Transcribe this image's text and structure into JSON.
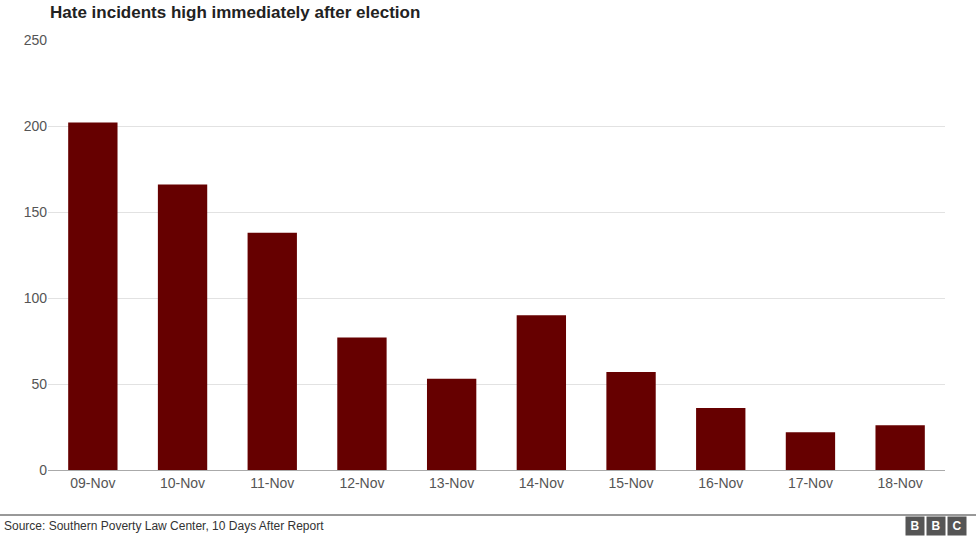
{
  "chart_data": {
    "type": "bar",
    "title": "Hate incidents high immediately after election",
    "categories": [
      "09-Nov",
      "10-Nov",
      "11-Nov",
      "12-Nov",
      "13-Nov",
      "14-Nov",
      "15-Nov",
      "16-Nov",
      "17-Nov",
      "18-Nov"
    ],
    "values": [
      202,
      166,
      138,
      77,
      53,
      90,
      57,
      36,
      22,
      26
    ],
    "color": "#660000",
    "ylim": [
      0,
      250
    ],
    "yticks": [
      0,
      50,
      100,
      150,
      200,
      250
    ],
    "grid": true,
    "source": "Source: Southern Poverty Law Center, 10 Days After Report",
    "logo": "BBC"
  }
}
